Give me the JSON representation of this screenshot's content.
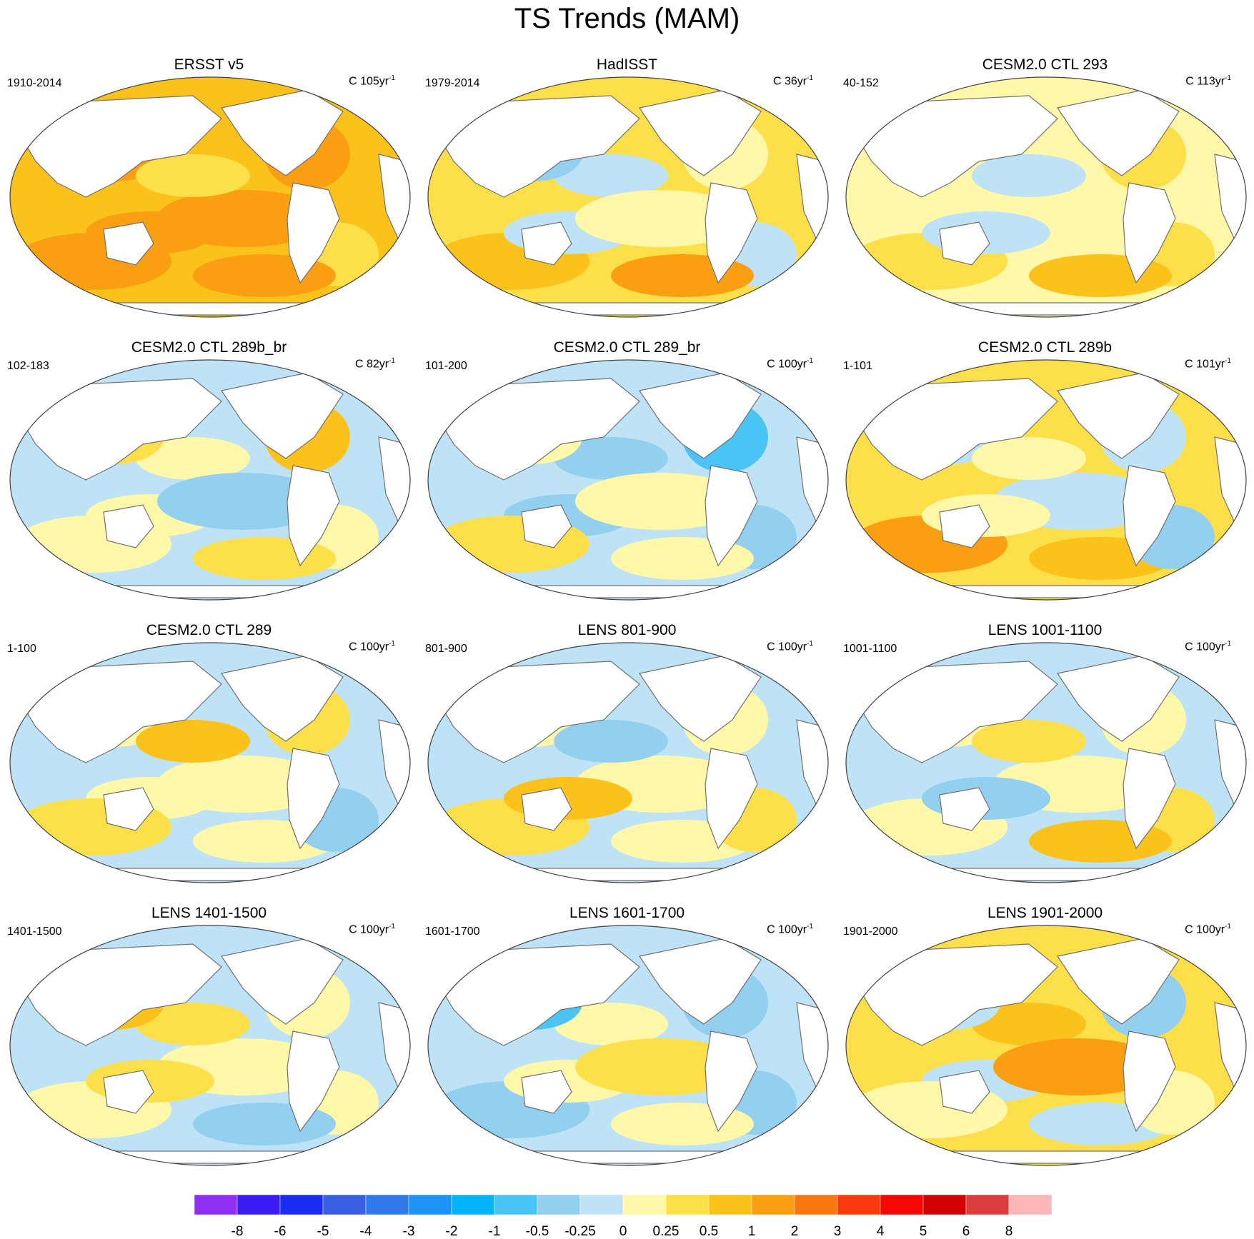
{
  "title": "TS Trends (MAM)",
  "panels": [
    {
      "name": "ERSST v5",
      "years": "1910-2014",
      "units_prefix": "C ",
      "units_value": "105yr",
      "units_sup": "-1",
      "theme": "warm"
    },
    {
      "name": "HadISST",
      "years": "1979-2014",
      "units_prefix": "C ",
      "units_value": "36yr",
      "units_sup": "-1",
      "theme": "mixed-warm"
    },
    {
      "name": "CESM2.0 CTL 293",
      "years": "40-152",
      "units_prefix": "C ",
      "units_value": "113yr",
      "units_sup": "-1",
      "theme": "light-warm"
    },
    {
      "name": "CESM2.0 CTL 289b_br",
      "years": "102-183",
      "units_prefix": "C ",
      "units_value": "82yr",
      "units_sup": "-1",
      "theme": "mixed"
    },
    {
      "name": "CESM2.0 CTL 289_br",
      "years": "101-200",
      "units_prefix": "C ",
      "units_value": "100yr",
      "units_sup": "-1",
      "theme": "cool"
    },
    {
      "name": "CESM2.0 CTL 289b",
      "years": "1-101",
      "units_prefix": "C ",
      "units_value": "101yr",
      "units_sup": "-1",
      "theme": "mixed-warm"
    },
    {
      "name": "CESM2.0 CTL 289",
      "years": "1-100",
      "units_prefix": "C ",
      "units_value": "100yr",
      "units_sup": "-1",
      "theme": "mixed"
    },
    {
      "name": "LENS 801-900",
      "years": "801-900",
      "units_prefix": "C ",
      "units_value": "100yr",
      "units_sup": "-1",
      "theme": "mixed"
    },
    {
      "name": "LENS 1001-1100",
      "years": "1001-1100",
      "units_prefix": "C ",
      "units_value": "100yr",
      "units_sup": "-1",
      "theme": "mixed"
    },
    {
      "name": "LENS 1401-1500",
      "years": "1401-1500",
      "units_prefix": "C ",
      "units_value": "100yr",
      "units_sup": "-1",
      "theme": "mixed"
    },
    {
      "name": "LENS 1601-1700",
      "years": "1601-1700",
      "units_prefix": "C ",
      "units_value": "100yr",
      "units_sup": "-1",
      "theme": "cool"
    },
    {
      "name": "LENS 1901-2000",
      "years": "1901-2000",
      "units_prefix": "C ",
      "units_value": "100yr",
      "units_sup": "-1",
      "theme": "mixed-warm"
    }
  ],
  "colorbar": {
    "colors": [
      "#8f2ff0",
      "#3c1cf5",
      "#1a2ef2",
      "#3a5fe0",
      "#2f7ae8",
      "#1f93f5",
      "#05b4f8",
      "#49c4f4",
      "#93d0ef",
      "#bfe3f6",
      "#fff8a9",
      "#fde049",
      "#fbc21b",
      "#f99f11",
      "#f97711",
      "#f93a0c",
      "#f60700",
      "#d30000",
      "#db3c3c",
      "#ffb6b6"
    ],
    "labels": [
      "-8",
      "-6",
      "-5",
      "-4",
      "-3",
      "-2",
      "-1",
      "-0.5",
      "-0.25",
      "0",
      "0.25",
      "0.5",
      "1",
      "2",
      "3",
      "4",
      "5",
      "6",
      "8"
    ]
  }
}
